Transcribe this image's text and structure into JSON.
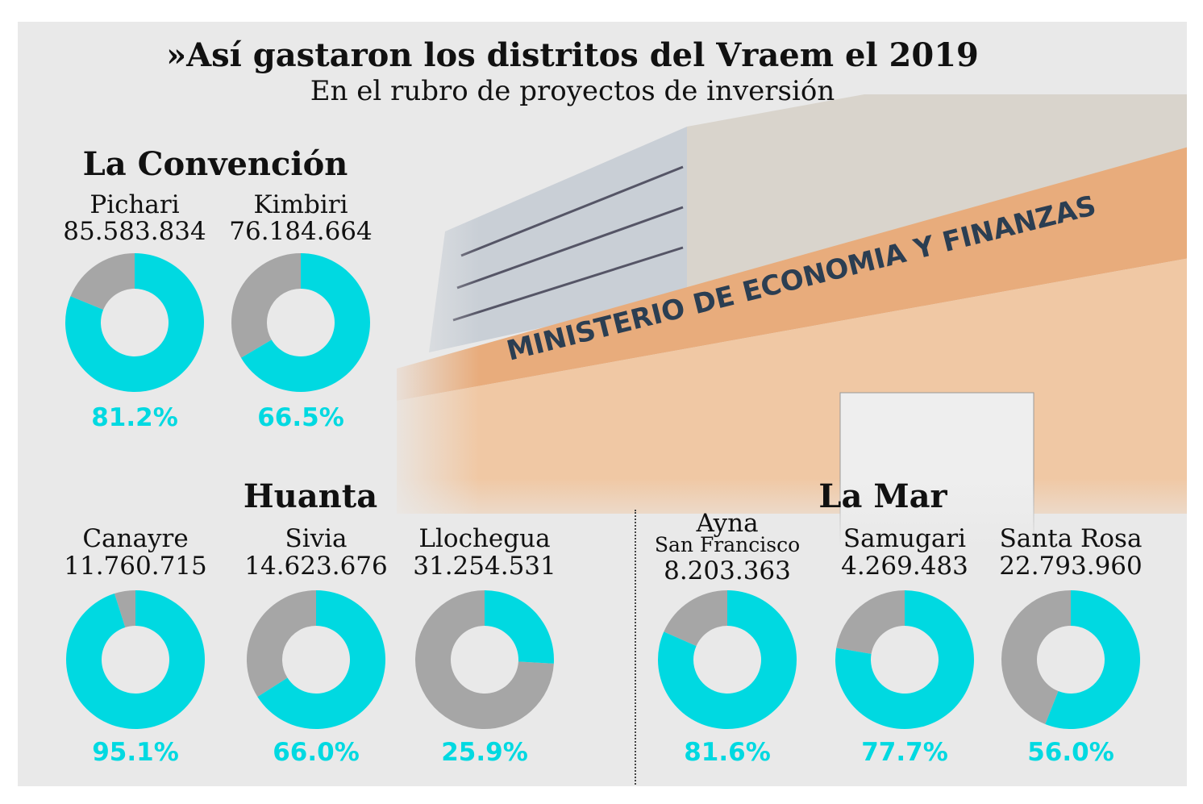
{
  "title": "»Así gastaron los distritos del Vraem el 2019",
  "subtitle": "En el rubro de proyectos de inversión",
  "photo_sign": "MINISTERIO DE ECONOMIA Y FINANZAS",
  "regions": [
    "La Convención",
    "Huanta",
    "La Mar"
  ],
  "colors": {
    "executed": "#00d9e1",
    "remaining": "#a6a6a6",
    "background": "#e9e9e9"
  },
  "chart_data": {
    "type": "pie",
    "title": "»Así gastaron los distritos del Vraem el 2019",
    "subtitle": "En el rubro de proyectos de inversión",
    "donuts": [
      {
        "region": "La Convención",
        "name": "Pichari",
        "amount": "85.583.834",
        "percent": 81.2,
        "label": "81.2%"
      },
      {
        "region": "La Convención",
        "name": "Kimbiri",
        "amount": "76.184.664",
        "percent": 66.5,
        "label": "66.5%"
      },
      {
        "region": "Huanta",
        "name": "Canayre",
        "amount": "11.760.715",
        "percent": 95.1,
        "label": "95.1%"
      },
      {
        "region": "Huanta",
        "name": "Sivia",
        "amount": "14.623.676",
        "percent": 66.0,
        "label": "66.0%"
      },
      {
        "region": "Huanta",
        "name": "Llochegua",
        "amount": "31.254.531",
        "percent": 25.9,
        "label": "25.9%"
      },
      {
        "region": "La Mar",
        "name": "Ayna",
        "name2": "San Francisco",
        "amount": "8.203.363",
        "percent": 81.6,
        "label": "81.6%"
      },
      {
        "region": "La Mar",
        "name": "Samugari",
        "amount": "4.269.483",
        "percent": 77.7,
        "label": "77.7%"
      },
      {
        "region": "La Mar",
        "name": "Santa Rosa",
        "amount": "22.793.960",
        "percent": 56.0,
        "label": "56.0%"
      }
    ]
  }
}
